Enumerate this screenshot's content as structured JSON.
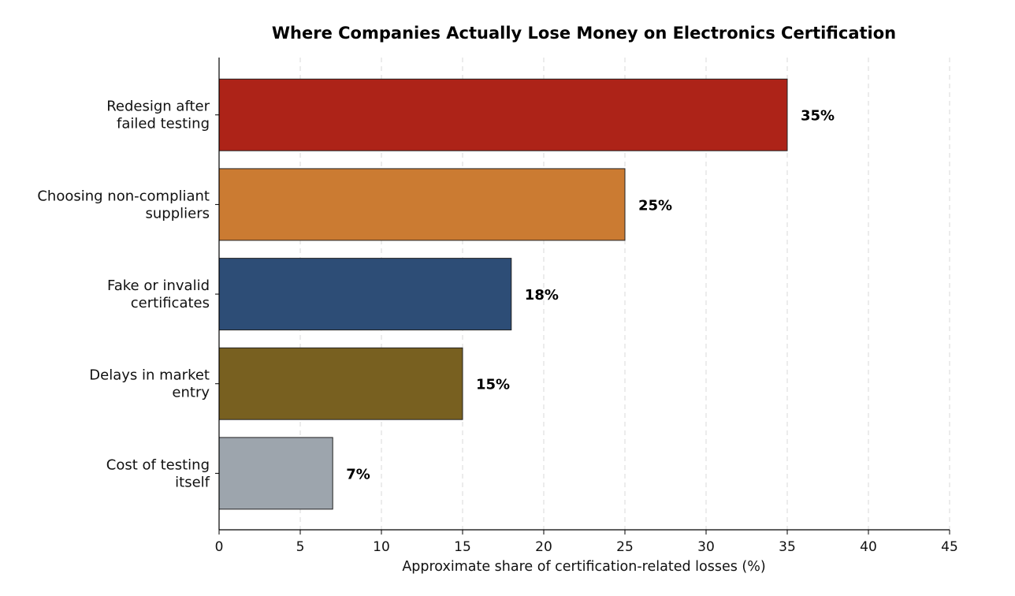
{
  "chart_data": {
    "type": "bar",
    "orientation": "horizontal",
    "title": "Where Companies Actually Lose Money on Electronics Certification",
    "xlabel": "Approximate share of certification-related losses (%)",
    "ylabel": "",
    "xlim": [
      0,
      45
    ],
    "x_ticks": [
      0,
      5,
      10,
      15,
      20,
      25,
      30,
      35,
      40,
      45
    ],
    "grid": "x-dashed",
    "categories": [
      [
        "Redesign after",
        "failed testing"
      ],
      [
        "Choosing non-compliant",
        "suppliers"
      ],
      [
        "Fake or invalid",
        "certificates"
      ],
      [
        "Delays in market",
        "entry"
      ],
      [
        "Cost of testing",
        "itself"
      ]
    ],
    "values": [
      35,
      25,
      18,
      15,
      7
    ],
    "value_labels": [
      "35%",
      "25%",
      "18%",
      "15%",
      "7%"
    ],
    "colors": [
      "#ad2318",
      "#cb7b32",
      "#2d4d76",
      "#786020",
      "#9da5ad"
    ]
  }
}
